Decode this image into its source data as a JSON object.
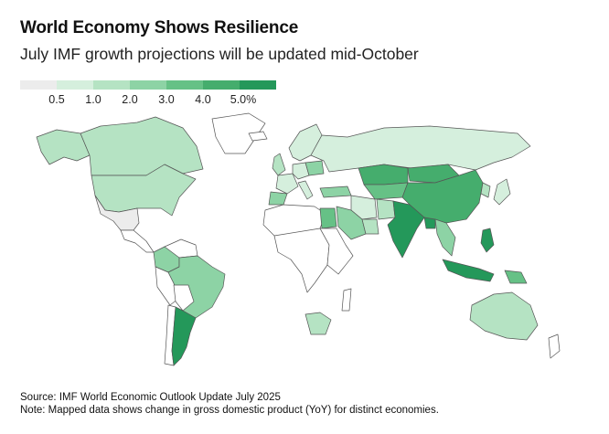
{
  "header": {
    "title": "World Economy Shows Resilience",
    "subtitle": "July IMF growth projections will be updated mid-October"
  },
  "legend": {
    "bins": [
      {
        "color": "#ececec"
      },
      {
        "color": "#d5efdd"
      },
      {
        "color": "#b5e3c3"
      },
      {
        "color": "#8dd3a5"
      },
      {
        "color": "#66c186"
      },
      {
        "color": "#45ad6d"
      },
      {
        "color": "#24985a"
      }
    ],
    "labels": [
      "0.5",
      "1.0",
      "2.0",
      "3.0",
      "4.0",
      "5.0%"
    ]
  },
  "regions": [
    {
      "name": "Alaska",
      "bin": 2
    },
    {
      "name": "Canada",
      "bin": 2
    },
    {
      "name": "Greenland",
      "bin": -1
    },
    {
      "name": "United States",
      "bin": 2
    },
    {
      "name": "Mexico",
      "bin": 0
    },
    {
      "name": "Central America",
      "bin": -1
    },
    {
      "name": "Colombia",
      "bin": 3
    },
    {
      "name": "Venezuela",
      "bin": -1
    },
    {
      "name": "Peru",
      "bin": -1
    },
    {
      "name": "Brazil",
      "bin": 3
    },
    {
      "name": "Bolivia",
      "bin": -1
    },
    {
      "name": "Chile",
      "bin": -1
    },
    {
      "name": "Argentina",
      "bin": 6
    },
    {
      "name": "Iceland",
      "bin": -1
    },
    {
      "name": "United Kingdom",
      "bin": 2
    },
    {
      "name": "Spain",
      "bin": 3
    },
    {
      "name": "France",
      "bin": 1
    },
    {
      "name": "Germany",
      "bin": 1
    },
    {
      "name": "Scandinavia",
      "bin": 1
    },
    {
      "name": "Poland",
      "bin": 3
    },
    {
      "name": "Italy",
      "bin": 1
    },
    {
      "name": "Turkey",
      "bin": 3
    },
    {
      "name": "Russia",
      "bin": 1
    },
    {
      "name": "Kazakhstan",
      "bin": 5
    },
    {
      "name": "Central Asia",
      "bin": 4
    },
    {
      "name": "China",
      "bin": 5
    },
    {
      "name": "Mongolia",
      "bin": 5
    },
    {
      "name": "Korea",
      "bin": 2
    },
    {
      "name": "Japan",
      "bin": 1
    },
    {
      "name": "Iran",
      "bin": 1
    },
    {
      "name": "Saudi Arabia",
      "bin": 3
    },
    {
      "name": "Gulf States",
      "bin": 2
    },
    {
      "name": "Pakistan",
      "bin": 2
    },
    {
      "name": "India",
      "bin": 6
    },
    {
      "name": "Bangladesh",
      "bin": 6
    },
    {
      "name": "Southeast Asia mainland",
      "bin": 3
    },
    {
      "name": "Philippines",
      "bin": 6
    },
    {
      "name": "Indonesia",
      "bin": 6
    },
    {
      "name": "Papua New Guinea",
      "bin": 4
    },
    {
      "name": "Australia",
      "bin": 2
    },
    {
      "name": "New Zealand",
      "bin": -1
    },
    {
      "name": "North Africa",
      "bin": -1
    },
    {
      "name": "Egypt",
      "bin": 4
    },
    {
      "name": "Nigeria",
      "bin": 3
    },
    {
      "name": "Central Africa",
      "bin": -1
    },
    {
      "name": "East Africa",
      "bin": -1
    },
    {
      "name": "South Africa",
      "bin": 2
    },
    {
      "name": "Madagascar",
      "bin": -1
    }
  ],
  "footer": {
    "source": "Source: IMF World Economic Outlook Update July 2025",
    "note": "Note: Mapped data shows change in gross domestic product (YoY) for distinct economies."
  }
}
